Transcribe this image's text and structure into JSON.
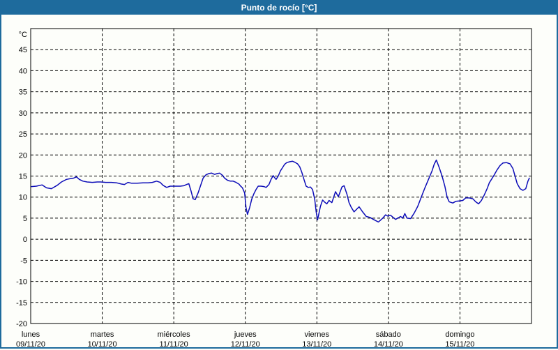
{
  "window": {
    "title": "Punto de rocío [°C]"
  },
  "colors": {
    "titlebar_bg": "#1e6b9d",
    "titlebar_text": "#ffffff",
    "frame_border": "#1e6b9d",
    "background": "#fdfefa",
    "grid": "#000000",
    "line": "#0d0db8",
    "label_text": "#000000"
  },
  "chart_data": {
    "type": "line",
    "title": "Punto de rocío [°C]",
    "ylabel": "°C",
    "ylim": [
      -20,
      50
    ],
    "yticks": [
      45,
      40,
      35,
      30,
      25,
      20,
      15,
      10,
      5,
      0,
      -5,
      -10,
      -15,
      -20
    ],
    "grid": "dashed",
    "legend": "none",
    "x_days": [
      {
        "name": "lunes",
        "date": "09/11/20"
      },
      {
        "name": "martes",
        "date": "10/11/20"
      },
      {
        "name": "miércoles",
        "date": "11/11/20"
      },
      {
        "name": "jueves",
        "date": "12/11/20"
      },
      {
        "name": "viernes",
        "date": "13/11/20"
      },
      {
        "name": "sábado",
        "date": "14/11/20"
      },
      {
        "name": "domingo",
        "date": "15/11/20"
      }
    ],
    "series": [
      {
        "name": "Punto de rocío",
        "color": "#0d0db8",
        "x_unit": "days since 09/11/20 00:00",
        "points": [
          [
            0.01,
            12.5
          ],
          [
            0.08,
            12.6
          ],
          [
            0.16,
            12.9
          ],
          [
            0.22,
            12.2
          ],
          [
            0.29,
            12.0
          ],
          [
            0.37,
            12.8
          ],
          [
            0.43,
            13.6
          ],
          [
            0.5,
            14.2
          ],
          [
            0.56,
            14.4
          ],
          [
            0.6,
            14.5
          ],
          [
            0.64,
            14.8
          ],
          [
            0.68,
            14.2
          ],
          [
            0.73,
            13.8
          ],
          [
            0.79,
            13.6
          ],
          [
            0.86,
            13.5
          ],
          [
            0.93,
            13.6
          ],
          [
            0.98,
            13.6
          ],
          [
            1.05,
            13.5
          ],
          [
            1.13,
            13.5
          ],
          [
            1.2,
            13.4
          ],
          [
            1.27,
            13.1
          ],
          [
            1.31,
            13.0
          ],
          [
            1.36,
            13.5
          ],
          [
            1.41,
            13.3
          ],
          [
            1.49,
            13.3
          ],
          [
            1.57,
            13.4
          ],
          [
            1.64,
            13.4
          ],
          [
            1.7,
            13.5
          ],
          [
            1.76,
            13.8
          ],
          [
            1.81,
            13.5
          ],
          [
            1.85,
            12.8
          ],
          [
            1.9,
            12.3
          ],
          [
            1.95,
            12.6
          ],
          [
            2.03,
            12.6
          ],
          [
            2.09,
            12.6
          ],
          [
            2.14,
            12.7
          ],
          [
            2.18,
            13.0
          ],
          [
            2.21,
            13.2
          ],
          [
            2.24,
            11.5
          ],
          [
            2.27,
            9.6
          ],
          [
            2.3,
            9.4
          ],
          [
            2.34,
            11.0
          ],
          [
            2.38,
            13.0
          ],
          [
            2.41,
            14.5
          ],
          [
            2.45,
            15.3
          ],
          [
            2.49,
            15.6
          ],
          [
            2.53,
            15.7
          ],
          [
            2.57,
            15.4
          ],
          [
            2.61,
            15.6
          ],
          [
            2.64,
            15.7
          ],
          [
            2.68,
            15.2
          ],
          [
            2.71,
            14.5
          ],
          [
            2.75,
            14.0
          ],
          [
            2.79,
            13.8
          ],
          [
            2.83,
            13.8
          ],
          [
            2.87,
            13.5
          ],
          [
            2.91,
            13.1
          ],
          [
            2.93,
            12.7
          ],
          [
            2.96,
            12.2
          ],
          [
            2.99,
            11.0
          ],
          [
            3.01,
            7.5
          ],
          [
            3.03,
            5.9
          ],
          [
            3.06,
            7.5
          ],
          [
            3.09,
            9.5
          ],
          [
            3.12,
            10.8
          ],
          [
            3.15,
            11.8
          ],
          [
            3.18,
            12.6
          ],
          [
            3.22,
            12.6
          ],
          [
            3.26,
            12.5
          ],
          [
            3.29,
            12.3
          ],
          [
            3.33,
            13.0
          ],
          [
            3.36,
            14.2
          ],
          [
            3.39,
            15.1
          ],
          [
            3.41,
            14.6
          ],
          [
            3.43,
            14.2
          ],
          [
            3.46,
            15.0
          ],
          [
            3.49,
            16.2
          ],
          [
            3.52,
            17.0
          ],
          [
            3.55,
            17.8
          ],
          [
            3.58,
            18.2
          ],
          [
            3.62,
            18.4
          ],
          [
            3.66,
            18.5
          ],
          [
            3.69,
            18.3
          ],
          [
            3.73,
            17.9
          ],
          [
            3.76,
            17.2
          ],
          [
            3.79,
            15.9
          ],
          [
            3.82,
            14.2
          ],
          [
            3.85,
            12.6
          ],
          [
            3.88,
            12.3
          ],
          [
            3.91,
            12.4
          ],
          [
            3.94,
            11.8
          ],
          [
            3.97,
            9.5
          ],
          [
            3.99,
            6.5
          ],
          [
            4.01,
            4.6
          ],
          [
            4.05,
            7.8
          ],
          [
            4.08,
            9.3
          ],
          [
            4.11,
            8.8
          ],
          [
            4.14,
            8.4
          ],
          [
            4.17,
            9.2
          ],
          [
            4.21,
            8.7
          ],
          [
            4.26,
            11.3
          ],
          [
            4.3,
            10.1
          ],
          [
            4.35,
            12.4
          ],
          [
            4.38,
            12.7
          ],
          [
            4.42,
            10.7
          ],
          [
            4.45,
            8.7
          ],
          [
            4.48,
            7.6
          ],
          [
            4.52,
            6.5
          ],
          [
            4.59,
            7.7
          ],
          [
            4.64,
            6.5
          ],
          [
            4.69,
            5.4
          ],
          [
            4.74,
            5.2
          ],
          [
            4.79,
            4.7
          ],
          [
            4.86,
            4.1
          ],
          [
            4.92,
            5.0
          ],
          [
            4.96,
            5.8
          ],
          [
            4.99,
            5.5
          ],
          [
            5.03,
            5.7
          ],
          [
            5.1,
            4.7
          ],
          [
            5.17,
            5.4
          ],
          [
            5.2,
            5.0
          ],
          [
            5.23,
            6.1
          ],
          [
            5.26,
            5.0
          ],
          [
            5.31,
            4.9
          ],
          [
            5.36,
            6.2
          ],
          [
            5.41,
            7.8
          ],
          [
            5.46,
            10.0
          ],
          [
            5.51,
            12.2
          ],
          [
            5.56,
            14.2
          ],
          [
            5.61,
            16.2
          ],
          [
            5.64,
            17.8
          ],
          [
            5.67,
            18.8
          ],
          [
            5.71,
            17.0
          ],
          [
            5.75,
            15.0
          ],
          [
            5.79,
            12.5
          ],
          [
            5.82,
            10.0
          ],
          [
            5.85,
            8.9
          ],
          [
            5.9,
            8.6
          ],
          [
            5.94,
            9.0
          ],
          [
            5.99,
            9.1
          ],
          [
            6.04,
            9.2
          ],
          [
            6.08,
            9.8
          ],
          [
            6.13,
            9.8
          ],
          [
            6.18,
            9.6
          ],
          [
            6.22,
            8.9
          ],
          [
            6.26,
            8.4
          ],
          [
            6.3,
            9.2
          ],
          [
            6.34,
            10.5
          ],
          [
            6.38,
            12.0
          ],
          [
            6.41,
            13.4
          ],
          [
            6.47,
            15.0
          ],
          [
            6.52,
            16.5
          ],
          [
            6.56,
            17.5
          ],
          [
            6.6,
            18.1
          ],
          [
            6.65,
            18.2
          ],
          [
            6.7,
            17.9
          ],
          [
            6.74,
            16.8
          ],
          [
            6.77,
            15.0
          ],
          [
            6.8,
            13.2
          ],
          [
            6.84,
            12.0
          ],
          [
            6.88,
            11.6
          ],
          [
            6.92,
            12.0
          ],
          [
            6.95,
            13.8
          ],
          [
            6.97,
            14.5
          ]
        ]
      }
    ]
  }
}
